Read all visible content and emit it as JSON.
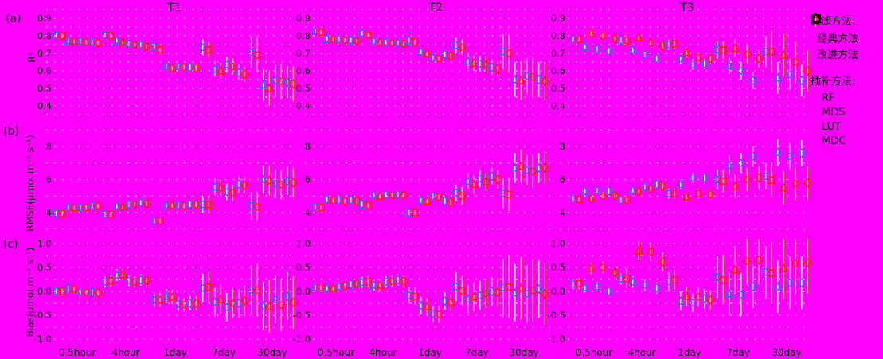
{
  "style": {
    "background": "#ff00ff",
    "grid_color": "#ffffff",
    "text_color": "#000000"
  },
  "legend": {
    "filter_header": "过滤方法:",
    "interp_header": "插补方法:",
    "filter_items": [
      {
        "label": "经典方法",
        "color": "#3f6ad8",
        "errbar_color": "#d9d6ff"
      },
      {
        "label": "改进方法",
        "color": "#ff1f14",
        "errbar_color": "#ffaa61"
      }
    ],
    "interp_items": [
      {
        "label": "RF",
        "marker": "square"
      },
      {
        "label": "MDS",
        "marker": "triangle"
      },
      {
        "label": "LUT",
        "marker": "circle"
      },
      {
        "label": "MDC",
        "marker": "diamond"
      }
    ]
  },
  "chart_data": {
    "type": "scatter",
    "title": "",
    "columns": [
      "T1",
      "T2",
      "T3"
    ],
    "categories": [
      "0.5hour",
      "4hour",
      "1day",
      "7day",
      "30day"
    ],
    "series_order": [
      "RF-classic",
      "RF-improved",
      "MDS-classic",
      "MDS-improved",
      "LUT-classic",
      "LUT-improved",
      "MDC-classic",
      "MDC-improved"
    ],
    "legend_position": "right",
    "grid": "dotted-horizontal",
    "rows": [
      {
        "id": "a",
        "label": "(a)",
        "ylabel": "R²",
        "yticks": [
          0.9,
          0.8,
          0.7,
          0.6,
          0.5,
          0.4
        ],
        "decimals": 1,
        "minor_step": 0.05,
        "grid_top": 0.95,
        "grid_bottom": 0.35,
        "ylim": [
          0.35,
          0.95
        ]
      },
      {
        "id": "b",
        "label": "(b)",
        "ylabel": "RMSE(μmol m⁻² s⁻¹)",
        "yticks": [
          8,
          6,
          4
        ],
        "decimals": 0,
        "minor_step": 1,
        "grid_top": 9,
        "grid_bottom": 3,
        "ylim": [
          3,
          9
        ]
      },
      {
        "id": "c",
        "label": "(c)",
        "ylabel": "Bias(μmol m⁻² s⁻¹)",
        "yticks": [
          1.0,
          0.5,
          0.0,
          -0.5,
          -1.0
        ],
        "decimals": 1,
        "minor_step": 0.25,
        "grid_top": 1.0,
        "grid_bottom": -1.0,
        "ylim": [
          -1.0,
          1.0
        ]
      }
    ],
    "panels": {
      "a": {
        "T1": {
          "groups": [
            [
              0.805,
              0.8,
              0.775,
              0.77,
              0.77,
              0.765,
              0.765,
              0.76
            ],
            [
              0.805,
              0.8,
              0.775,
              0.765,
              0.755,
              0.75,
              0.75,
              0.74
            ],
            [
              0.74,
              0.72,
              0.625,
              0.615,
              0.625,
              0.62,
              0.62,
              0.615
            ],
            [
              0.735,
              0.72,
              0.61,
              0.6,
              0.635,
              0.625,
              0.59,
              0.58
            ],
            [
              0.705,
              0.69,
              0.52,
              0.5,
              0.545,
              0.54,
              0.535,
              0.525
            ]
          ],
          "err": [
            [
              0.012,
              0.012
            ],
            [
              0.012,
              0.012
            ],
            [
              0.02,
              0.02
            ],
            [
              0.045,
              0.045
            ],
            [
              0.09,
              0.1
            ]
          ]
        },
        "T2": {
          "groups": [
            [
              0.825,
              0.82,
              0.785,
              0.78,
              0.78,
              0.775,
              0.775,
              0.77
            ],
            [
              0.815,
              0.805,
              0.77,
              0.765,
              0.765,
              0.76,
              0.76,
              0.755
            ],
            [
              0.775,
              0.765,
              0.71,
              0.7,
              0.675,
              0.67,
              0.695,
              0.685
            ],
            [
              0.745,
              0.735,
              0.655,
              0.645,
              0.64,
              0.635,
              0.62,
              0.61
            ],
            [
              0.71,
              0.7,
              0.55,
              0.545,
              0.57,
              0.565,
              0.55,
              0.54
            ]
          ],
          "err": [
            [
              0.012,
              0.012
            ],
            [
              0.012,
              0.012
            ],
            [
              0.02,
              0.02
            ],
            [
              0.045,
              0.045
            ],
            [
              0.1,
              0.11
            ]
          ]
        },
        "T3": {
          "groups": [
            [
              0.78,
              0.78,
              0.74,
              0.815,
              0.725,
              0.8,
              0.715,
              0.785
            ],
            [
              0.775,
              0.775,
              0.72,
              0.79,
              0.695,
              0.76,
              0.67,
              0.745
            ],
            [
              0.75,
              0.755,
              0.67,
              0.705,
              0.635,
              0.675,
              0.64,
              0.67
            ],
            [
              0.72,
              0.72,
              0.63,
              0.73,
              0.6,
              0.695,
              0.545,
              0.67
            ],
            [
              0.71,
              0.71,
              0.56,
              0.69,
              0.58,
              0.65,
              0.545,
              0.6
            ]
          ],
          "err": [
            [
              0.015,
              0.015
            ],
            [
              0.02,
              0.02
            ],
            [
              0.03,
              0.03
            ],
            [
              0.05,
              0.05
            ],
            [
              0.09,
              0.12
            ]
          ]
        }
      },
      "b": {
        "T1": {
          "groups": [
            [
              3.95,
              3.95,
              4.35,
              4.3,
              4.3,
              4.3,
              4.4,
              4.4
            ],
            [
              3.9,
              3.9,
              4.4,
              4.35,
              4.5,
              4.5,
              4.6,
              4.55
            ],
            [
              3.5,
              3.5,
              4.45,
              4.45,
              4.45,
              4.4,
              4.5,
              4.5
            ],
            [
              4.5,
              4.5,
              5.55,
              5.5,
              5.25,
              5.2,
              5.7,
              5.65
            ],
            [
              4.4,
              4.35,
              6.0,
              5.95,
              5.75,
              5.7,
              5.9,
              5.8
            ]
          ],
          "err": [
            [
              0.15,
              0.15
            ],
            [
              0.15,
              0.15
            ],
            [
              0.2,
              0.2
            ],
            [
              0.5,
              0.5
            ],
            [
              0.85,
              0.9
            ]
          ]
        },
        "T2": {
          "groups": [
            [
              4.35,
              4.3,
              4.8,
              4.75,
              4.75,
              4.7,
              4.75,
              4.7
            ],
            [
              4.5,
              4.45,
              5.05,
              5.0,
              5.1,
              5.05,
              5.1,
              5.05
            ],
            [
              4.0,
              4.0,
              4.75,
              4.7,
              5.0,
              4.95,
              4.7,
              4.65
            ],
            [
              5.2,
              5.0,
              5.9,
              5.7,
              6.05,
              5.85,
              6.2,
              6.0
            ],
            [
              5.15,
              5.1,
              6.7,
              6.8,
              6.55,
              6.5,
              6.7,
              6.7
            ]
          ],
          "err": [
            [
              0.15,
              0.15
            ],
            [
              0.15,
              0.15
            ],
            [
              0.2,
              0.2
            ],
            [
              0.5,
              0.55
            ],
            [
              0.9,
              1.0
            ]
          ]
        },
        "T3": {
          "groups": [
            [
              4.85,
              4.8,
              5.3,
              4.85,
              5.35,
              5.0,
              5.3,
              5.05
            ],
            [
              4.75,
              4.75,
              5.35,
              5.3,
              5.55,
              5.45,
              5.7,
              5.6
            ],
            [
              5.15,
              5.15,
              5.7,
              4.95,
              6.1,
              5.15,
              6.1,
              5.1
            ],
            [
              6.0,
              5.9,
              6.85,
              5.6,
              7.0,
              6.0,
              7.4,
              6.1
            ],
            [
              6.2,
              5.95,
              7.65,
              5.5,
              7.4,
              5.75,
              7.6,
              5.8
            ]
          ],
          "err": [
            [
              0.2,
              0.2
            ],
            [
              0.2,
              0.2
            ],
            [
              0.3,
              0.3
            ],
            [
              0.6,
              0.7
            ],
            [
              0.8,
              1.0
            ]
          ]
        }
      },
      "c": {
        "T1": {
          "groups": [
            [
              0.0,
              0.0,
              0.07,
              0.06,
              -0.02,
              -0.02,
              -0.02,
              -0.03
            ],
            [
              0.2,
              0.22,
              0.34,
              0.35,
              0.22,
              0.2,
              0.24,
              0.23
            ],
            [
              -0.18,
              -0.18,
              -0.1,
              -0.12,
              -0.27,
              -0.28,
              -0.25,
              -0.25
            ],
            [
              0.07,
              0.09,
              -0.22,
              -0.17,
              -0.33,
              -0.25,
              -0.25,
              -0.2
            ],
            [
              0.03,
              0.03,
              -0.3,
              -0.31,
              -0.17,
              -0.29,
              -0.1,
              -0.23
            ]
          ],
          "err": [
            [
              0.08,
              0.08
            ],
            [
              0.12,
              0.12
            ],
            [
              0.15,
              0.15
            ],
            [
              0.3,
              0.32
            ],
            [
              0.5,
              0.55
            ]
          ]
        },
        "T2": {
          "groups": [
            [
              0.08,
              0.08,
              0.07,
              0.07,
              0.1,
              0.12,
              0.15,
              0.16
            ],
            [
              0.19,
              0.2,
              0.13,
              0.13,
              0.2,
              0.21,
              0.24,
              0.21
            ],
            [
              -0.08,
              -0.1,
              -0.3,
              -0.32,
              -0.47,
              -0.48,
              -0.2,
              -0.23
            ],
            [
              0.1,
              0.02,
              -0.16,
              -0.11,
              -0.08,
              -0.05,
              0.0,
              -0.02
            ],
            [
              0.08,
              0.09,
              -0.03,
              0.07,
              -0.05,
              0.02,
              0.05,
              -0.05
            ]
          ],
          "err": [
            [
              0.08,
              0.08
            ],
            [
              0.12,
              0.12
            ],
            [
              0.18,
              0.18
            ],
            [
              0.3,
              0.3
            ],
            [
              0.6,
              0.65
            ]
          ]
        },
        "T3": {
          "groups": [
            [
              0.15,
              0.16,
              0.08,
              0.48,
              0.1,
              0.5,
              0.0,
              0.4
            ],
            [
              0.26,
              0.27,
              0.2,
              0.85,
              0.13,
              0.83,
              0.07,
              0.62
            ],
            [
              0.2,
              0.24,
              -0.2,
              -0.1,
              -0.24,
              -0.11,
              -0.15,
              -0.18
            ],
            [
              0.3,
              0.24,
              -0.05,
              0.45,
              -0.07,
              0.63,
              0.1,
              0.66
            ],
            [
              0.4,
              0.39,
              0.1,
              0.48,
              0.18,
              0.58,
              0.18,
              0.6
            ]
          ],
          "err": [
            [
              0.1,
              0.12
            ],
            [
              0.12,
              0.2
            ],
            [
              0.2,
              0.2
            ],
            [
              0.45,
              0.5
            ],
            [
              0.55,
              0.65
            ]
          ]
        }
      }
    }
  }
}
